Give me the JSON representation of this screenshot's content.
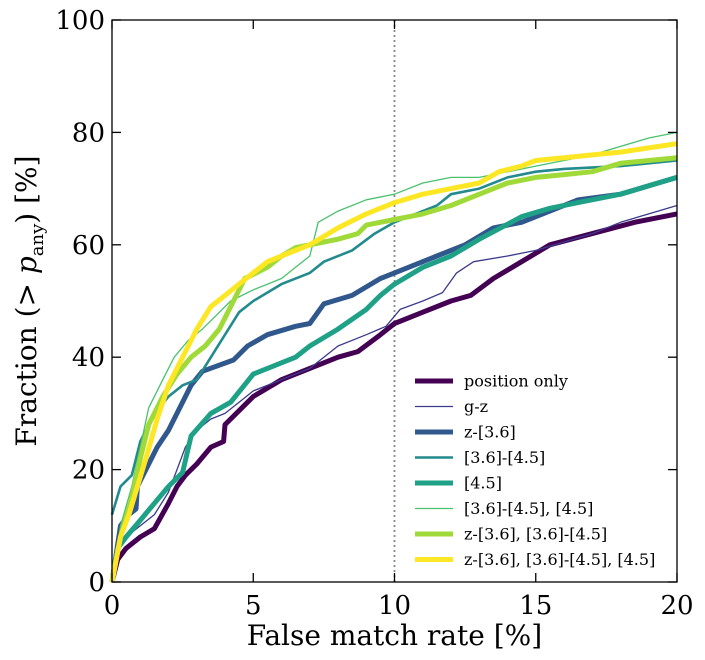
{
  "chart_data": {
    "type": "line",
    "title": "",
    "xlabel": "False match rate [%]",
    "ylabel": "Fraction (> p_any) [%]",
    "ylabel_parts": {
      "prefix": "Fraction (",
      "gt": ">",
      "p": "p",
      "sub": "any",
      "suffix": ") [%]"
    },
    "xlim": [
      0,
      20
    ],
    "ylim": [
      0,
      100
    ],
    "xticks": [
      0,
      5,
      10,
      15,
      20
    ],
    "xtick_labels": [
      "0",
      "5",
      "10",
      "15",
      "20"
    ],
    "yticks": [
      0,
      20,
      40,
      60,
      80,
      100
    ],
    "ytick_labels": [
      "0",
      "20",
      "40",
      "60",
      "80",
      "100"
    ],
    "grid": false,
    "legend_position": "lower-right",
    "vline": {
      "x": 10,
      "style": "dotted",
      "color": "#888888"
    },
    "series": [
      {
        "name": "position only",
        "color": "#440154",
        "weight": "thick",
        "x": [
          0,
          0.2,
          0.5,
          1.0,
          1.5,
          2.0,
          2.3,
          2.6,
          3.0,
          3.5,
          3.95,
          4.0,
          5.0,
          6.0,
          7.0,
          8.0,
          8.7,
          9.5,
          10.0,
          11.0,
          12.0,
          12.7,
          13.5,
          14.5,
          15.5,
          17.0,
          18.5,
          20.0
        ],
        "y": [
          0,
          4,
          6,
          8,
          9.5,
          14,
          17,
          19,
          21,
          24,
          25,
          28,
          33,
          36,
          38,
          40,
          41,
          44,
          46,
          48,
          50,
          51,
          54,
          57,
          60,
          62,
          64,
          65.5
        ]
      },
      {
        "name": "g-z",
        "color": "#3b3b8c",
        "weight": "thin",
        "x": [
          0,
          0.2,
          0.5,
          1.0,
          1.5,
          2.0,
          2.3,
          2.6,
          3.0,
          3.5,
          4.0,
          4.5,
          5.0,
          6.0,
          7.0,
          8.0,
          9.0,
          9.7,
          10.2,
          11.0,
          11.7,
          12.2,
          12.8,
          14.0,
          15.0,
          17.0,
          18.0,
          20.0
        ],
        "y": [
          0,
          6,
          8,
          10,
          12,
          16,
          20,
          24,
          27,
          29,
          30,
          32,
          34,
          36,
          38,
          42,
          44,
          45.5,
          48.5,
          50,
          51.5,
          55,
          57,
          58,
          59,
          62,
          64,
          67
        ]
      },
      {
        "name": "z-[3.6]",
        "color": "#31588d",
        "weight": "thick",
        "x": [
          0,
          0.3,
          0.6,
          0.85,
          0.9,
          1.2,
          1.6,
          2.0,
          2.4,
          2.8,
          3.2,
          4.3,
          4.8,
          5.5,
          6.5,
          7.0,
          7.5,
          8.5,
          9.5,
          10.5,
          11.5,
          12.5,
          13.5,
          14.5,
          15.5,
          16.5,
          18.0,
          20.0
        ],
        "y": [
          0,
          10,
          12,
          13,
          17,
          20,
          24,
          27,
          31,
          35,
          37.5,
          39.5,
          42,
          44,
          45.5,
          46,
          49.5,
          51,
          54,
          56,
          58,
          60,
          63,
          64,
          66,
          68,
          69,
          72
        ]
      },
      {
        "name": "[3.6]-[4.5]",
        "color": "#238a8d",
        "weight": "medium",
        "x": [
          0,
          0.3,
          0.7,
          1.0,
          1.5,
          2.0,
          2.5,
          3.0,
          3.5,
          4.0,
          4.5,
          5.0,
          6.0,
          7.0,
          7.5,
          8.5,
          9.3,
          10.0,
          11.0,
          11.5,
          12.0,
          13.0,
          14.0,
          15.0,
          16.0,
          18.0,
          20.0
        ],
        "y": [
          12,
          17,
          19,
          25,
          30,
          33,
          35,
          36,
          40,
          44,
          48,
          50,
          53,
          55,
          57,
          59,
          62,
          64,
          66,
          67,
          69,
          70,
          72,
          73,
          73.5,
          74,
          75
        ]
      },
      {
        "name": "[4.5]",
        "color": "#1fa187",
        "weight": "thick",
        "x": [
          0,
          0.2,
          0.5,
          1.0,
          1.5,
          2.0,
          2.3,
          2.5,
          2.8,
          3.5,
          4.2,
          5.0,
          6.0,
          6.5,
          7.0,
          8.0,
          9.0,
          9.5,
          10.0,
          11.0,
          12.0,
          13.0,
          14.5,
          15.5,
          16.5,
          18.0,
          20.0
        ],
        "y": [
          0,
          6,
          8,
          11,
          14,
          17,
          18.5,
          19.5,
          26,
          30,
          32,
          37,
          39,
          40,
          42,
          45,
          48.5,
          51,
          53,
          56,
          58,
          61,
          65,
          66.5,
          67.5,
          69,
          72
        ]
      },
      {
        "name": "[3.6]-[4.5], [4.5]",
        "color": "#4ac16d",
        "weight": "thin",
        "x": [
          0,
          0.3,
          0.7,
          1.0,
          1.3,
          1.8,
          2.2,
          2.7,
          3.2,
          3.6,
          4.2,
          5.0,
          6.0,
          6.5,
          7.0,
          7.3,
          8.0,
          9.0,
          10.0,
          11.0,
          12.0,
          13.0,
          15.0,
          17.0,
          18.0,
          19.0,
          20.0
        ],
        "y": [
          0,
          10,
          17,
          24,
          31,
          36,
          40,
          43,
          45,
          47,
          50,
          52,
          54,
          56,
          58,
          64,
          66,
          68,
          69,
          71,
          72,
          72,
          74,
          76,
          77.5,
          79,
          80
        ]
      },
      {
        "name": "z-[3.6], [3.6]-[4.5]",
        "color": "#a0da39",
        "weight": "thick",
        "x": [
          0,
          0.3,
          0.7,
          1.0,
          1.3,
          1.8,
          2.3,
          2.8,
          3.3,
          3.8,
          4.3,
          4.7,
          5.5,
          6.0,
          6.5,
          7.0,
          7.5,
          8.0,
          8.7,
          9.0,
          10.0,
          11.0,
          12.0,
          13.0,
          14.0,
          15.0,
          16.0,
          17.0,
          18.0,
          20.0
        ],
        "y": [
          0,
          8,
          15,
          22,
          28,
          33,
          37,
          40,
          42,
          45,
          50,
          54,
          56,
          58,
          59.5,
          60,
          60.5,
          61,
          62,
          63.5,
          64.5,
          65.5,
          67,
          69,
          71,
          72,
          72.5,
          73,
          74.5,
          75.5
        ]
      },
      {
        "name": "z-[3.6], [3.6]-[4.5], [4.5]",
        "color": "#fde725",
        "weight": "thick",
        "x": [
          0,
          0.3,
          0.6,
          0.9,
          1.2,
          1.6,
          2.0,
          2.5,
          3.0,
          3.5,
          4.0,
          4.5,
          5.0,
          5.5,
          6.0,
          7.0,
          8.0,
          9.0,
          10.0,
          11.0,
          12.0,
          13.0,
          13.7,
          14.5,
          15.0,
          16.0,
          17.0,
          18.0,
          20.0
        ],
        "y": [
          0,
          8,
          12,
          17,
          22,
          29,
          35,
          40,
          45,
          49,
          51,
          53,
          55,
          57,
          58,
          60,
          63,
          65.5,
          67.5,
          69,
          70,
          71,
          73,
          74,
          75,
          75.5,
          76,
          76.5,
          78
        ]
      }
    ]
  }
}
